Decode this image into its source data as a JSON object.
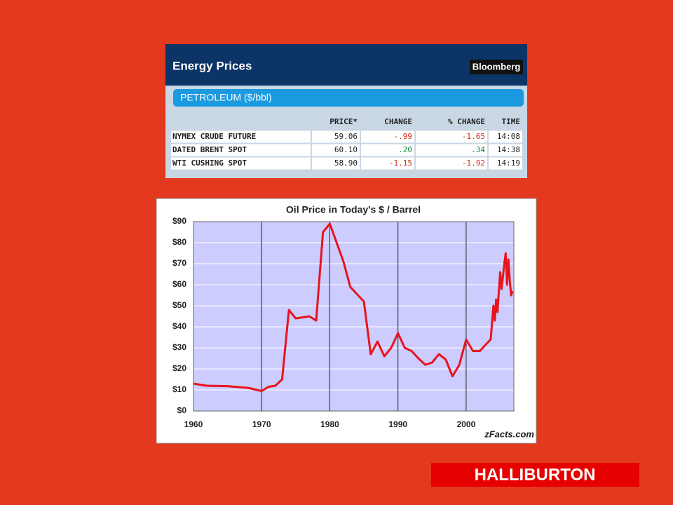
{
  "table": {
    "title": "Energy Prices",
    "brand": "Bloomberg",
    "section": "PETROLEUM ($/bbl)",
    "columns": [
      "PRICE*",
      "CHANGE",
      "% CHANGE",
      "TIME"
    ],
    "rows": [
      [
        "NYMEX CRUDE FUTURE",
        "59.06",
        "-.99",
        "-1.65",
        "14:08"
      ],
      [
        "DATED BRENT SPOT",
        "60.10",
        ".20",
        ".34",
        "14:38"
      ],
      [
        "WTI CUSHING SPOT",
        "58.90",
        "-1.15",
        "-1.92",
        "14:19"
      ]
    ]
  },
  "chart_data": {
    "type": "line",
    "title": "Oil Price in Today's $ / Barrel",
    "credit": "zFacts.com",
    "x": [
      1960,
      1962,
      1965,
      1968,
      1970,
      1971,
      1972,
      1973,
      1974,
      1975,
      1977,
      1978,
      1979,
      1980,
      1981,
      1982,
      1983,
      1985,
      1986,
      1987,
      1988,
      1989,
      1990,
      1991,
      1992,
      1993,
      1994,
      1995,
      1996,
      1997,
      1998,
      1999,
      2000,
      2001,
      2002,
      2003,
      2003.6,
      2004,
      2004.2,
      2004.4,
      2004.6,
      2004.8,
      2005,
      2005.2,
      2005.4,
      2005.6,
      2005.8,
      2006,
      2006.2,
      2006.4,
      2006.6,
      2006.8
    ],
    "series": [
      {
        "color": "#e8141c",
        "values": [
          13,
          12,
          11.8,
          11,
          9.5,
          11.5,
          12,
          15,
          48,
          44,
          45,
          43,
          85,
          89,
          80,
          71,
          59,
          52,
          27,
          33,
          26,
          30,
          37,
          30,
          28.5,
          25,
          22,
          23,
          27,
          24.5,
          16.5,
          22,
          34,
          28.5,
          28.5,
          32,
          34,
          50,
          43,
          53,
          47,
          57,
          66,
          58,
          64,
          70,
          75,
          60,
          72,
          62,
          55,
          57
        ]
      }
    ],
    "xlim": [
      1960,
      2007
    ],
    "xticks": [
      1960,
      1970,
      1980,
      1990,
      2000
    ],
    "ylim": [
      0,
      90
    ],
    "yticks": [
      {
        "value": 0,
        "label": "$0"
      },
      {
        "value": 10,
        "label": "$10"
      },
      {
        "value": 20,
        "label": "$20"
      },
      {
        "value": 30,
        "label": "$30"
      },
      {
        "value": 40,
        "label": "$40"
      },
      {
        "value": 50,
        "label": "$50"
      },
      {
        "value": 60,
        "label": "$60"
      },
      {
        "value": 70,
        "label": "$70"
      },
      {
        "value": 80,
        "label": "$80"
      },
      {
        "value": 90,
        "label": "$90"
      }
    ],
    "grid": true
  },
  "footer": {
    "logo": "HALLIBURTON"
  }
}
